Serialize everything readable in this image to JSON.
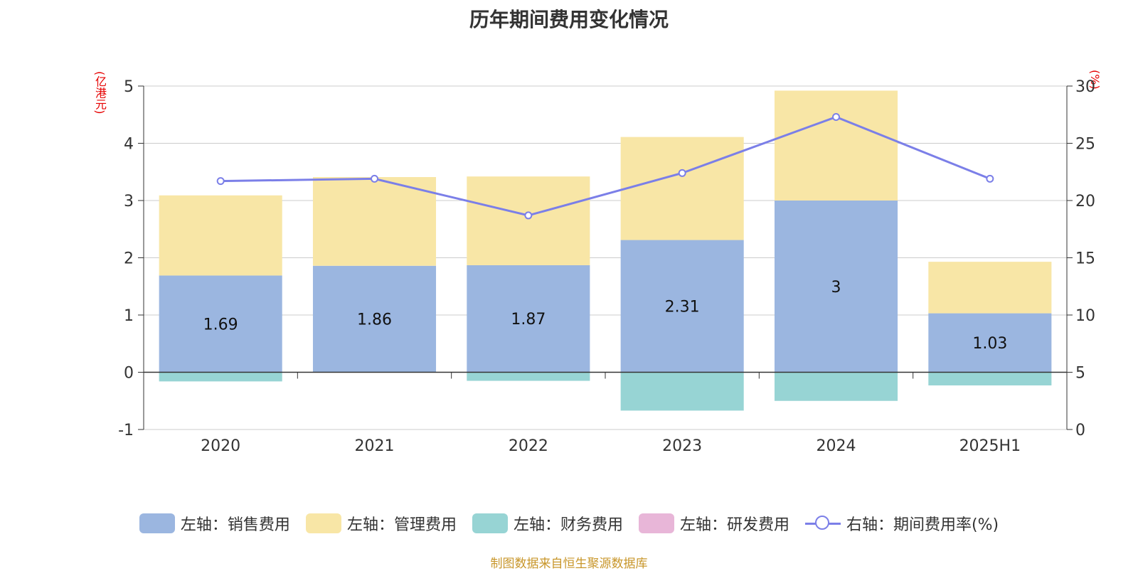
{
  "title": "历年期间费用变化情况",
  "unit_left": "(亿港元)",
  "unit_right": "(%)",
  "source": "制图数据来自恒生聚源数据库",
  "legend": [
    {
      "label": "左轴：销售费用",
      "color": "#9bb6e0",
      "kind": "bar"
    },
    {
      "label": "左轴：管理费用",
      "color": "#f8e6a6",
      "kind": "bar"
    },
    {
      "label": "左轴：财务费用",
      "color": "#97d4d4",
      "kind": "bar"
    },
    {
      "label": "左轴：研发费用",
      "color": "#e8b6d8",
      "kind": "bar"
    },
    {
      "label": "右轴：期间费用率(%)",
      "color": "#7b7fe8",
      "kind": "line"
    }
  ],
  "chart_data": {
    "type": "bar",
    "stacked": true,
    "categories": [
      "2020",
      "2021",
      "2022",
      "2023",
      "2024",
      "2025H1"
    ],
    "series": [
      {
        "name": "左轴：销售费用",
        "axis": "left",
        "color": "#9bb6e0",
        "values": [
          1.69,
          1.86,
          1.87,
          2.31,
          3,
          1.03
        ],
        "labels": [
          "1.69",
          "1.86",
          "1.87",
          "2.31",
          "3",
          "1.03"
        ]
      },
      {
        "name": "左轴：管理费用",
        "axis": "left",
        "color": "#f8e6a6",
        "values": [
          1.4,
          1.55,
          1.55,
          1.8,
          1.92,
          0.9
        ]
      },
      {
        "name": "左轴：财务费用",
        "axis": "left",
        "color": "#97d4d4",
        "values": [
          -0.16,
          0,
          -0.15,
          -0.67,
          -0.5,
          -0.23
        ]
      },
      {
        "name": "左轴：研发费用",
        "axis": "left",
        "color": "#e8b6d8",
        "values": [
          0,
          0,
          0,
          0,
          0,
          0
        ]
      },
      {
        "name": "右轴：期间费用率(%)",
        "axis": "right",
        "type": "line",
        "color": "#7b7fe8",
        "values": [
          21.7,
          21.9,
          18.7,
          22.4,
          27.3,
          21.9
        ]
      }
    ],
    "y_left": {
      "min": -1,
      "max": 5,
      "ticks": [
        "-1",
        "0",
        "1",
        "2",
        "3",
        "4",
        "5"
      ]
    },
    "y_right": {
      "min": 0,
      "max": 30,
      "ticks": [
        "0",
        "5",
        "10",
        "15",
        "20",
        "25",
        "30"
      ]
    },
    "grid": true,
    "legend_position": "bottom"
  }
}
